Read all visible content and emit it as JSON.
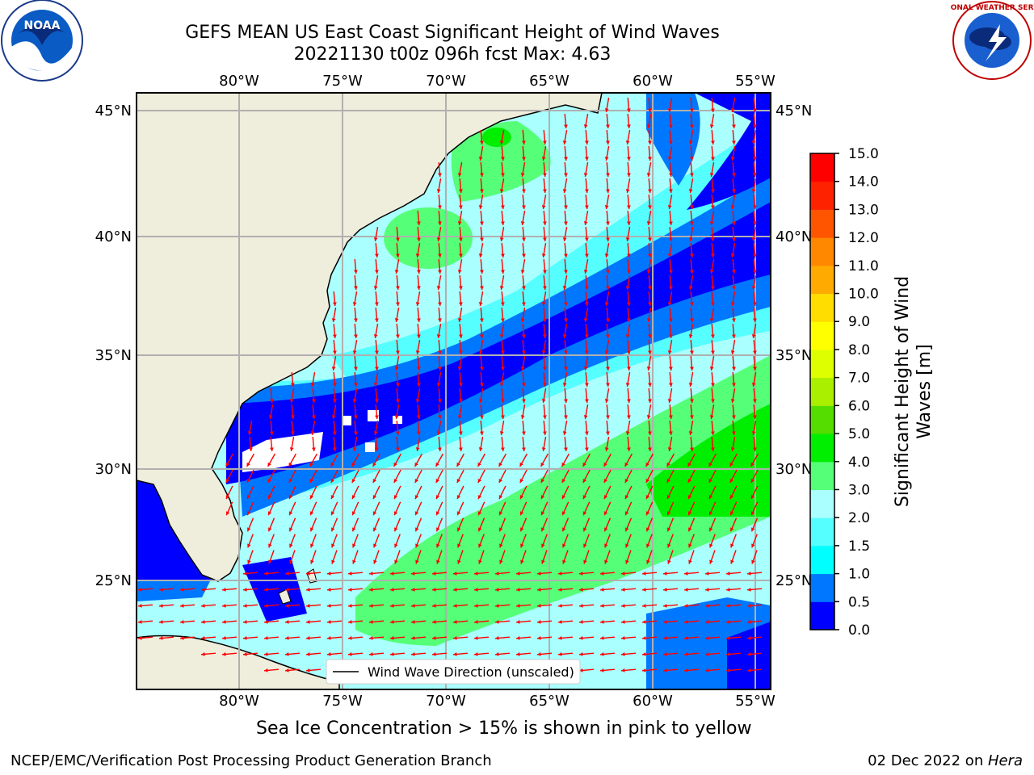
{
  "header": {
    "title_line1": "GEFS MEAN US East Coast Significant Height of Wind Waves",
    "title_line2": "20221130 t00z 096h fcst   Max: 4.63"
  },
  "logos": {
    "noaa": {
      "text": "NOAA"
    },
    "nws": {
      "text": "NATIONAL WEATHER SERVICE"
    }
  },
  "map": {
    "lon_labels": [
      "80°W",
      "75°W",
      "70°W",
      "65°W",
      "60°W",
      "55°W"
    ],
    "lat_labels": [
      "45°N",
      "40°N",
      "35°N",
      "30°N",
      "25°N"
    ],
    "legend_label": "Wind Wave Direction (unscaled)",
    "colors": {
      "land": "#efeddc",
      "grid": "#b0b0b0",
      "arrow": "#ff0000"
    }
  },
  "colorbar": {
    "label_line1": "Significant Height of Wind",
    "label_line2": "Waves [m]",
    "ticks": [
      "0.0",
      "0.5",
      "1.0",
      "1.5",
      "2.0",
      "3.0",
      "4.0",
      "5.0",
      "6.0",
      "7.0",
      "8.0",
      "9.0",
      "10.0",
      "11.0",
      "12.0",
      "13.0",
      "14.0",
      "15.0"
    ],
    "colors": [
      "#0000ff",
      "#0077ff",
      "#00ffff",
      "#55ffff",
      "#aaffff",
      "#55ff77",
      "#00ee00",
      "#55dd00",
      "#aaee00",
      "#ddff00",
      "#ffff00",
      "#ffdd00",
      "#ffaa00",
      "#ff8800",
      "#ff5500",
      "#ff2200",
      "#ff0000"
    ]
  },
  "caption": "Sea Ice Concentration > 15% is shown in pink to yellow",
  "footer": {
    "left": "NCEP/EMC/Verification Post Processing Product Generation Branch",
    "right_date": "02 Dec 2022 on ",
    "right_host": "Hera"
  }
}
